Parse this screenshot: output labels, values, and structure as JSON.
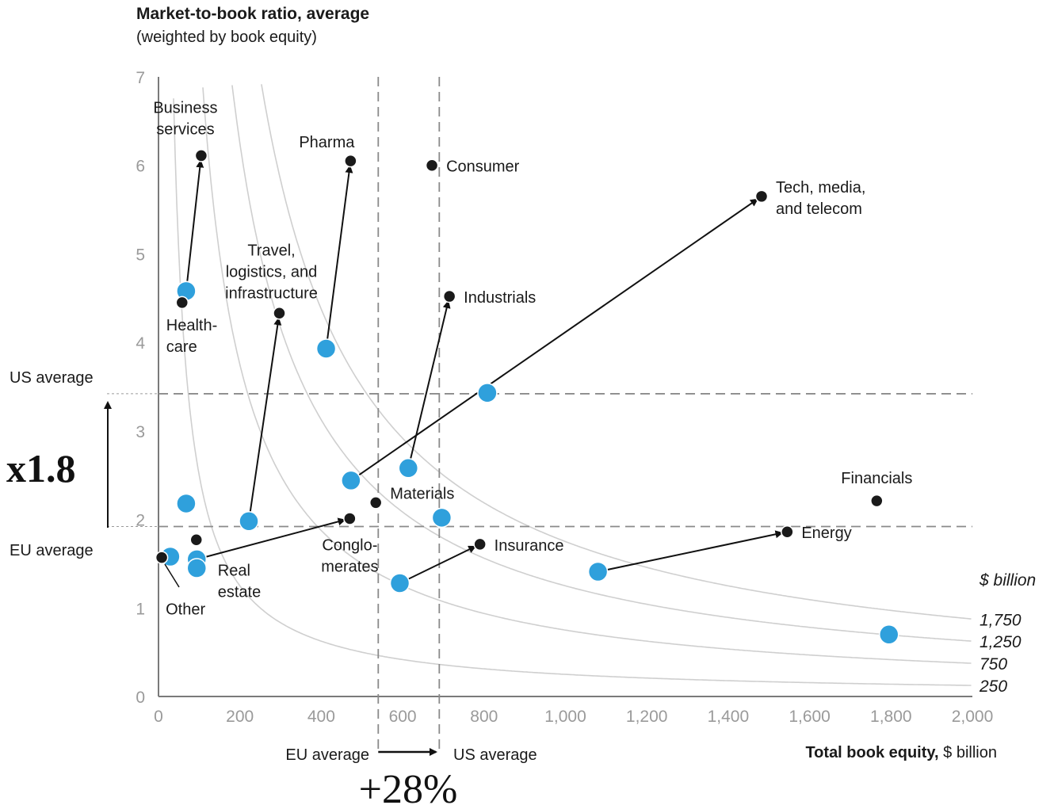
{
  "chart_data": {
    "type": "scatter",
    "title": "Market-to-book ratio, average",
    "subtitle": "(weighted by book equity)",
    "xlabel": "Total book equity,",
    "xlabel_unit": "$ billion",
    "xlim": [
      0,
      2000
    ],
    "ylim": [
      0,
      7
    ],
    "x_ticks": [
      "0",
      "200",
      "400",
      "600",
      "800",
      "1,000",
      "1,200",
      "1,400",
      "1,600",
      "1,800",
      "2,000"
    ],
    "y_ticks": [
      "0",
      "1",
      "2",
      "3",
      "4",
      "5",
      "6",
      "7"
    ],
    "grid": false,
    "series": [
      {
        "name": "EU",
        "color": "#2fa0dc"
      },
      {
        "name": "US",
        "color": "#1a1a1a"
      }
    ],
    "iso_curves": {
      "unit_label": "$ billion",
      "levels": [
        1750,
        1250,
        750,
        250
      ],
      "labels": [
        "1,750",
        "1,250",
        "750",
        "250"
      ]
    },
    "reference_lines": {
      "us_avg_ratio": 3.42,
      "eu_avg_ratio": 1.92,
      "eu_avg_equity": 540,
      "us_avg_equity": 690,
      "h_labels": [
        "US average",
        "EU average"
      ],
      "v_labels": [
        "EU average",
        "US average"
      ],
      "ratio_change": "x1.8",
      "equity_change": "+28%"
    },
    "sectors": [
      {
        "label": "Business\nservices",
        "eu": [
          68,
          4.58
        ],
        "us": [
          105,
          6.11
        ],
        "arrow": true
      },
      {
        "label": "Health-\ncare",
        "eu": [
          68,
          4.58
        ],
        "us": [
          58,
          4.45
        ],
        "arrow": false
      },
      {
        "label": "Pharma",
        "eu": [
          412,
          3.93
        ],
        "us": [
          472,
          6.05
        ],
        "arrow": true
      },
      {
        "label": "Consumer",
        "eu": null,
        "us": [
          672,
          6.0
        ],
        "arrow": false
      },
      {
        "label": "Tech, media,\nand telecom",
        "eu": [
          473,
          2.44
        ],
        "us": [
          1482,
          5.65
        ],
        "arrow": true
      },
      {
        "label": "Travel,\nlogistics, and\ninfrastructure",
        "eu": [
          222,
          1.98
        ],
        "us": [
          297,
          4.33
        ],
        "arrow": true
      },
      {
        "label": "Industrials",
        "eu": [
          614,
          2.58
        ],
        "us": [
          715,
          4.52
        ],
        "arrow": true
      },
      {
        "label": "Materials",
        "eu": [
          696,
          2.02
        ],
        "us": [
          534,
          2.19
        ],
        "arrow": false
      },
      {
        "label": "Conglo-\nmerates",
        "eu": [
          94,
          1.55
        ],
        "us": [
          470,
          2.01
        ],
        "arrow": true
      },
      {
        "label": "Real\nestate",
        "eu": [
          94,
          1.45
        ],
        "us": [
          93,
          1.77
        ],
        "arrow": false
      },
      {
        "label": "Other",
        "eu": [
          29,
          1.58
        ],
        "us": [
          8,
          1.57
        ],
        "arrow": false
      },
      {
        "label": "Insurance",
        "eu": [
          593,
          1.28
        ],
        "us": [
          790,
          1.72
        ],
        "arrow": true
      },
      {
        "label": "Energy",
        "eu": [
          1080,
          1.41
        ],
        "us": [
          1545,
          1.86
        ],
        "arrow": true
      },
      {
        "label": "Financials",
        "eu": [
          1795,
          0.7
        ],
        "us": [
          1765,
          2.21
        ],
        "arrow": false
      },
      {
        "label": "",
        "eu": [
          808,
          3.43
        ],
        "us": null,
        "arrow": false
      },
      {
        "label": "",
        "eu": [
          68,
          2.18
        ],
        "us": null,
        "arrow": false
      }
    ]
  }
}
